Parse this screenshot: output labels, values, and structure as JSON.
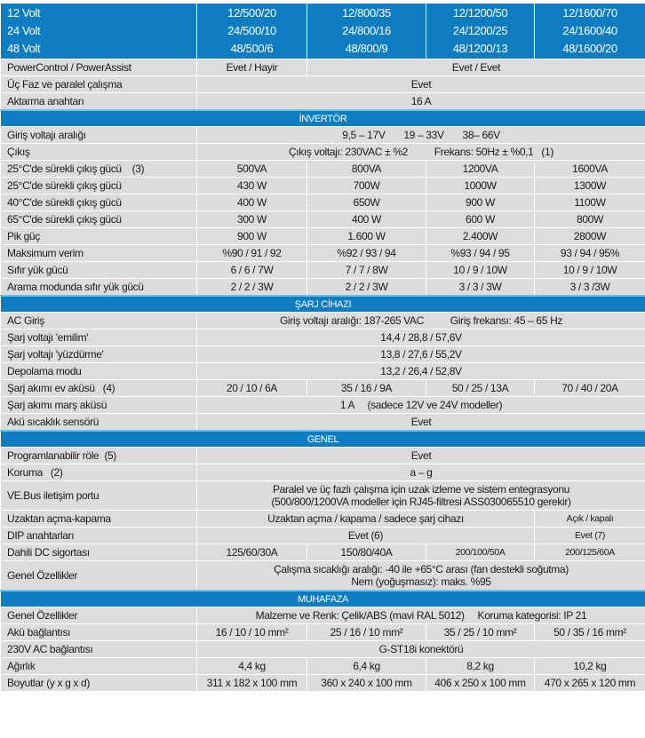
{
  "colors": {
    "header_blue": "#0d7cc1",
    "row_gray": "#dcdcdc"
  },
  "header": {
    "label": "12 Volt\n24 Volt\n48 Volt",
    "models": [
      "12/500/20\n24/500/10\n48/500/6",
      "12/800/35\n24/800/16\n48/800/9",
      "12/1200/50\n24/1200/25\n48/1200/13",
      "12/1600/70\n24/1600/40\n48/1600/20"
    ]
  },
  "blocks": [
    {
      "title": "",
      "rows": [
        {
          "label": "PowerControl / PowerAssist",
          "cells": [
            {
              "text": "Evet / Hayir",
              "span": 1
            },
            {
              "text": "Evet / Evet",
              "span": 3
            }
          ]
        },
        {
          "label": "Üç Faz ve paralel çalışma",
          "cells": [
            {
              "text": "Evet",
              "span": 4
            }
          ]
        },
        {
          "label": "Aktarma anahtarı",
          "cells": [
            {
              "text": "16 A",
              "span": 4
            }
          ]
        }
      ]
    },
    {
      "title": "İNVERTÖR",
      "rows": [
        {
          "label": "Giriş voltajı aralığı",
          "cells": [
            {
              "text": "9,5 – 17V       19 – 33V       38– 66V",
              "span": 4
            }
          ]
        },
        {
          "label": "Çıkış",
          "cells": [
            {
              "text": "Çıkış voltajı: 230VAC ± %2          Frekans: 50Hz ± %0,1   (1)",
              "span": 4
            }
          ]
        },
        {
          "label": "25°C'de sürekli çıkış gücü    (3)",
          "cells": [
            {
              "text": "500VA",
              "span": 1
            },
            {
              "text": "800VA",
              "span": 1
            },
            {
              "text": "1200VA",
              "span": 1
            },
            {
              "text": "1600VA",
              "span": 1
            }
          ]
        },
        {
          "label": "25°C'de sürekli çıkış gücü",
          "cells": [
            {
              "text": "430 W",
              "span": 1
            },
            {
              "text": "700W",
              "span": 1
            },
            {
              "text": "1000W",
              "span": 1
            },
            {
              "text": "1300W",
              "span": 1
            }
          ]
        },
        {
          "label": "40°C'de sürekli çıkış gücü",
          "cells": [
            {
              "text": "400 W",
              "span": 1
            },
            {
              "text": "650W",
              "span": 1
            },
            {
              "text": "900 W",
              "span": 1
            },
            {
              "text": "1100W",
              "span": 1
            }
          ]
        },
        {
          "label": "65°C'de sürekli çıkış gücü",
          "cells": [
            {
              "text": "300 W",
              "span": 1
            },
            {
              "text": "400 W",
              "span": 1
            },
            {
              "text": "600 W",
              "span": 1
            },
            {
              "text": "800W",
              "span": 1
            }
          ]
        },
        {
          "label": "Pik güç",
          "cells": [
            {
              "text": "900 W",
              "span": 1
            },
            {
              "text": "1.600 W",
              "span": 1
            },
            {
              "text": "2.400W",
              "span": 1
            },
            {
              "text": "2800W",
              "span": 1
            }
          ]
        },
        {
          "label": "Maksimum verim",
          "cells": [
            {
              "text": "%90 / 91 / 92",
              "span": 1
            },
            {
              "text": "%92 / 93 / 94",
              "span": 1
            },
            {
              "text": "%93 / 94 / 95",
              "span": 1
            },
            {
              "text": "93 / 94 / 95%",
              "span": 1
            }
          ]
        },
        {
          "label": "Sıfır yük gücü",
          "cells": [
            {
              "text": "6 / 6 / 7W",
              "span": 1
            },
            {
              "text": "7 / 7 / 8W",
              "span": 1
            },
            {
              "text": "10 / 9 / 10W",
              "span": 1
            },
            {
              "text": "10 / 9 / 10W",
              "span": 1
            }
          ]
        },
        {
          "label": "Arama modunda sıfır yük gücü",
          "cells": [
            {
              "text": "2 / 2 / 3W",
              "span": 1
            },
            {
              "text": "2 / 2 / 3W",
              "span": 1
            },
            {
              "text": "3 / 3 / 3W",
              "span": 1
            },
            {
              "text": "3 / 3 /3W",
              "span": 1
            }
          ]
        }
      ]
    },
    {
      "title": "ŞARJ CİHAZI",
      "rows": [
        {
          "label": "AC Giriş",
          "cells": [
            {
              "text": "Giriş voltajı aralığı: 187-265 VAC          Giriş frekansı: 45 – 65 Hz",
              "span": 4
            }
          ]
        },
        {
          "label": "Şarj voltajı 'emilim'",
          "cells": [
            {
              "text": "14,4 / 28,8 / 57,6V",
              "span": 4
            }
          ]
        },
        {
          "label": "Şarj voltajı 'yüzdürme'",
          "cells": [
            {
              "text": "13,8 / 27,6 / 55,2V",
              "span": 4
            }
          ]
        },
        {
          "label": "Depolama modu",
          "cells": [
            {
              "text": "13,2 / 26,4 / 52,8V",
              "span": 4
            }
          ]
        },
        {
          "label": "Şarj akımı ev aküsü   (4)",
          "cells": [
            {
              "text": "20 / 10 / 6A",
              "span": 1
            },
            {
              "text": "35 / 16 / 9A",
              "span": 1
            },
            {
              "text": "50 / 25 / 13A",
              "span": 1
            },
            {
              "text": "70 / 40 / 20A",
              "span": 1
            }
          ]
        },
        {
          "label": "Şarj akımı marş aküsü",
          "cells": [
            {
              "text": "1 A     (sadece 12V ve 24V modeller)",
              "span": 4
            }
          ]
        },
        {
          "label": "Akü sıcaklık sensörü",
          "cells": [
            {
              "text": "Evet",
              "span": 4
            }
          ]
        }
      ]
    },
    {
      "title": "GENEL",
      "rows": [
        {
          "label": "Programlanabilir röle  (5)",
          "cells": [
            {
              "text": "Evet",
              "span": 4
            }
          ]
        },
        {
          "label": "Koruma   (2)",
          "cells": [
            {
              "text": "a – g",
              "span": 4
            }
          ]
        },
        {
          "label": "VE.Bus iletişim portu",
          "double": true,
          "cells": [
            {
              "text": "Paralel ve üç fazlı çalışma için uzak izleme ve sistem entegrasyonu\n(500/800/1200VA modeller için RJ45-filtresi ASS030065510 gerekir)",
              "span": 4
            }
          ]
        },
        {
          "label": "Uzaktan açma-kapama",
          "cells": [
            {
              "text": "Uzaktan açma / kapama / sadece şarj cihazı",
              "span": 3
            },
            {
              "text": "Açık / kapalı",
              "span": 1,
              "small": true
            }
          ]
        },
        {
          "label": "DIP anahtarları",
          "cells": [
            {
              "text": "Evet (6)",
              "span": 3
            },
            {
              "text": "Evet (7)",
              "span": 1,
              "small": true
            }
          ]
        },
        {
          "label": "Dahili DC sigortası",
          "cells": [
            {
              "text": "125/60/30A",
              "span": 1
            },
            {
              "text": "150/80/40A",
              "span": 1
            },
            {
              "text": "200/100/50A",
              "span": 1,
              "small": true
            },
            {
              "text": "200/125/60A",
              "span": 1,
              "small": true
            }
          ]
        },
        {
          "label": "Genel Özellikler",
          "double": true,
          "cells": [
            {
              "text": "Çalışma sıcaklığı aralığı: -40 ile +65°C arası (fan destekli soğutma)\nNem (yoğuşmasız): maks. %95",
              "span": 4
            }
          ]
        }
      ]
    },
    {
      "title": "MUHAFAZA",
      "rows": [
        {
          "label": "Genel Özellikler",
          "cells": [
            {
              "text": "Malzeme ve Renk: Çelik/ABS (mavi RAL 5012)     Koruma kategorisi: IP 21",
              "span": 4
            }
          ]
        },
        {
          "label": "Akü bağlantısı",
          "cells": [
            {
              "text": "16 / 10 / 10 mm²",
              "span": 1
            },
            {
              "text": "25 / 16 / 10 mm²",
              "span": 1
            },
            {
              "text": "35 / 25 / 10 mm²",
              "span": 1
            },
            {
              "text": "50 / 35 / 16 mm²",
              "span": 1
            }
          ]
        },
        {
          "label": "230V AC bağlantısı",
          "cells": [
            {
              "text": "G-ST18i konektörü",
              "span": 4
            }
          ]
        },
        {
          "label": "Ağırlık",
          "cells": [
            {
              "text": "4,4 kg",
              "span": 1
            },
            {
              "text": "6,4 kg",
              "span": 1
            },
            {
              "text": "8,2 kg",
              "span": 1
            },
            {
              "text": "10,2 kg",
              "span": 1
            }
          ]
        },
        {
          "label": "Boyutlar (y x g x d)",
          "cells": [
            {
              "text": "311 x 182 x 100 mm",
              "span": 1
            },
            {
              "text": "360 x 240 x 100 mm",
              "span": 1
            },
            {
              "text": "406 x 250 x 100 mm",
              "span": 1
            },
            {
              "text": "470 x 265 x 120 mm",
              "span": 1
            }
          ]
        }
      ]
    }
  ]
}
